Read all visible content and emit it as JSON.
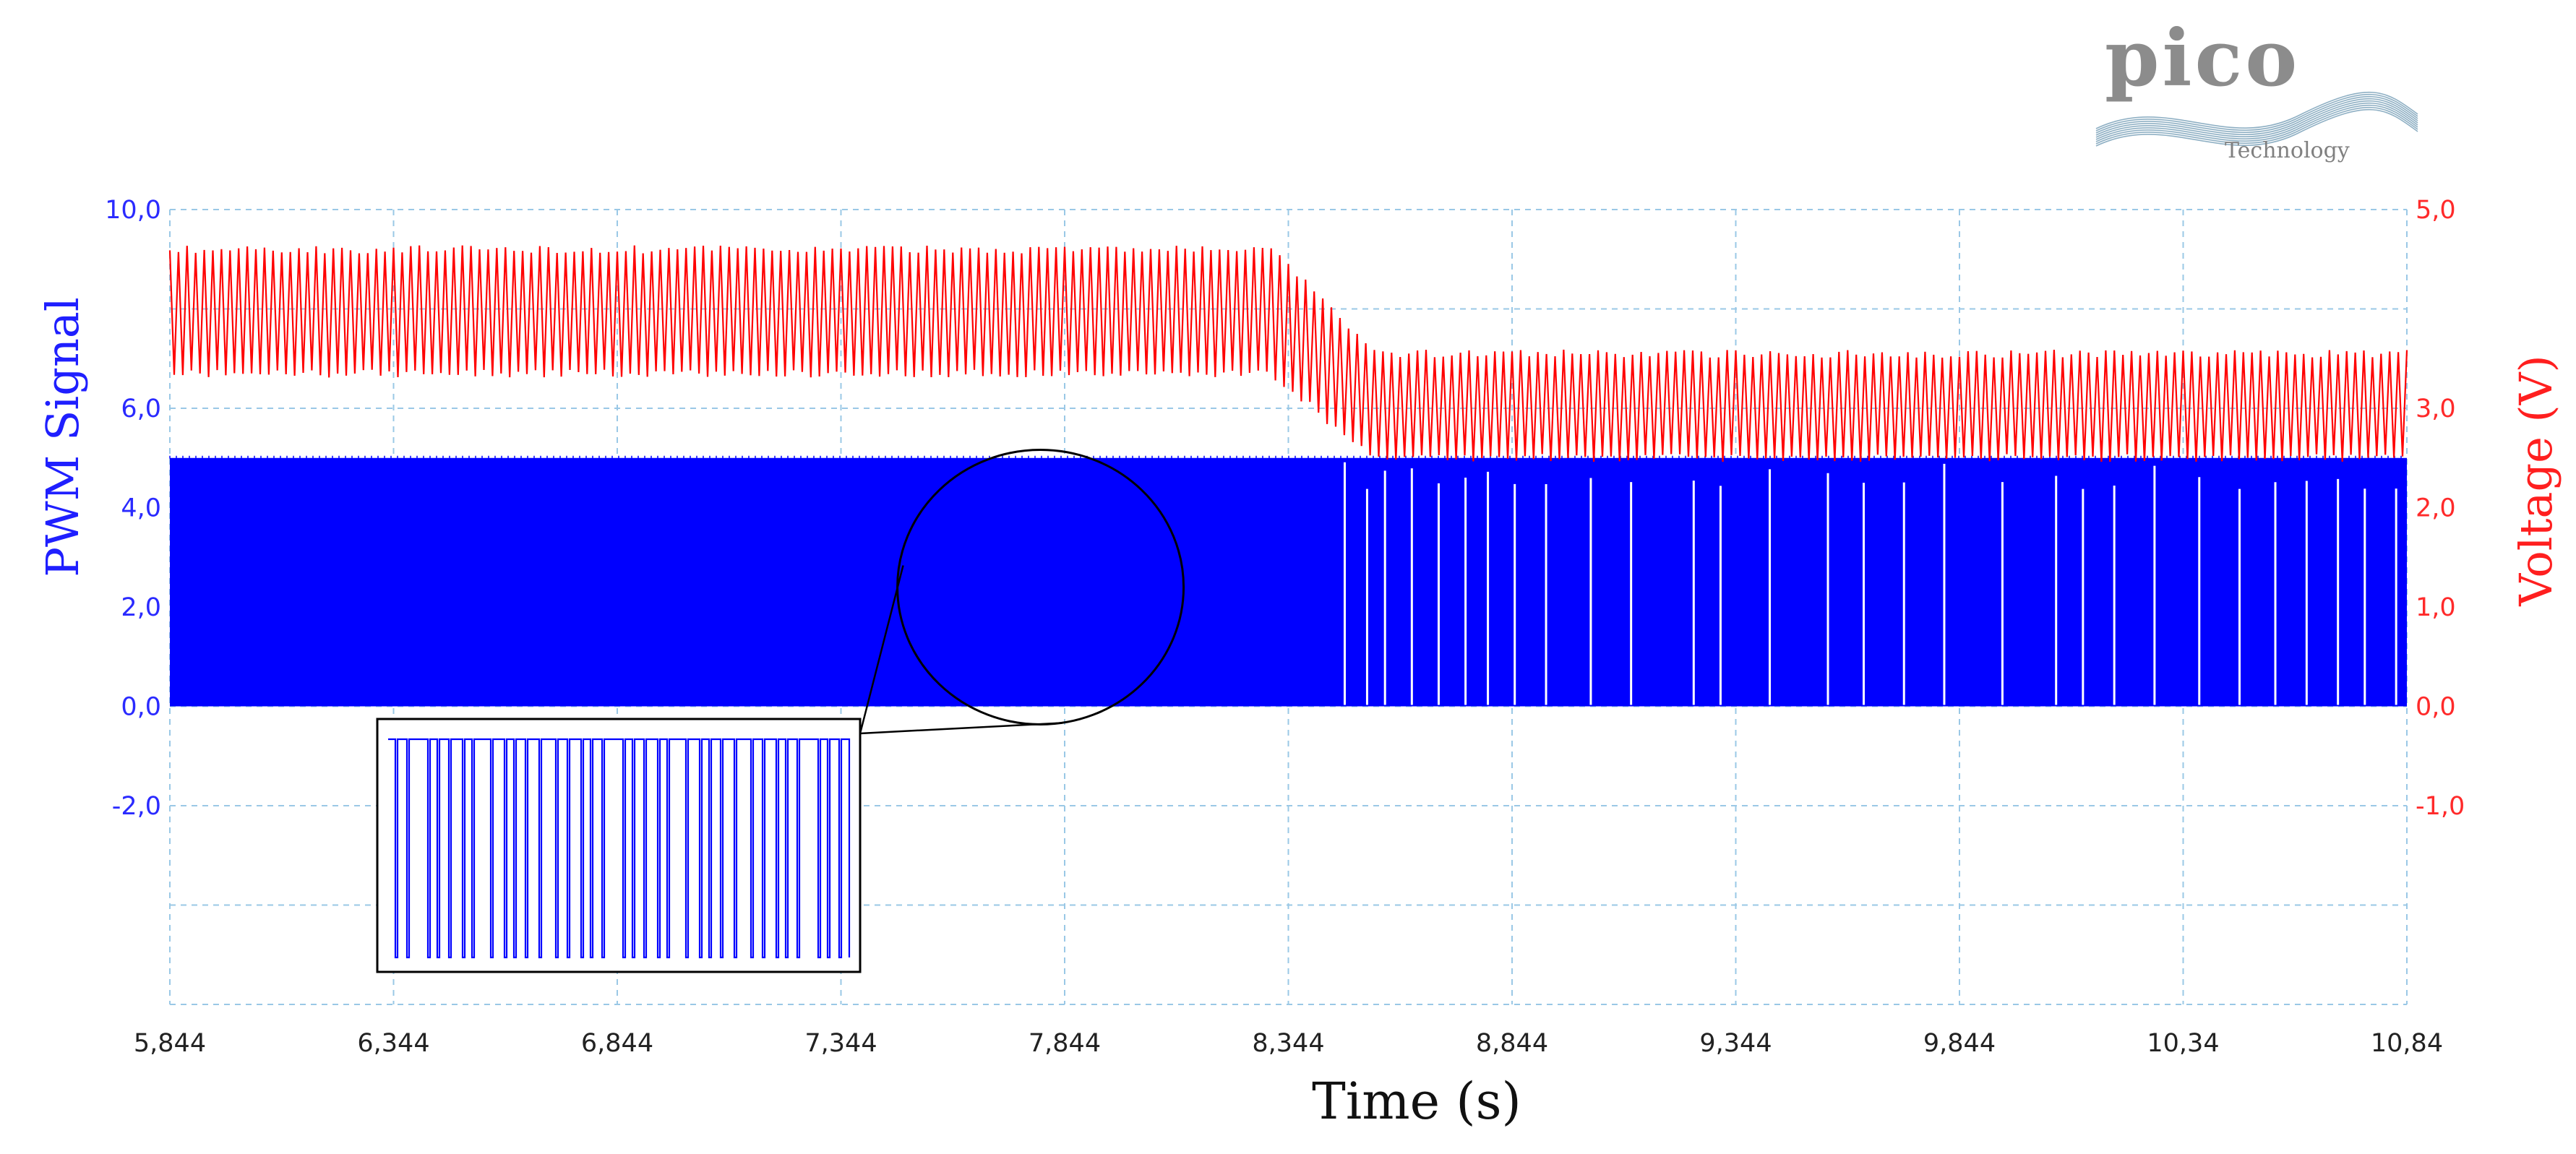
{
  "logo": {
    "name": "pico",
    "tagline": "Technology"
  },
  "chart_data": {
    "type": "line",
    "title": "",
    "xlabel": "Time (s)",
    "ylabel_left": "PWM Signal",
    "ylabel_right": "Voltage (V)",
    "xlim": [
      5.844,
      10.844
    ],
    "ylim_left": [
      -6,
      10
    ],
    "ylim_right": [
      -3,
      5
    ],
    "grid": true,
    "x_ticks": [
      5.844,
      6.344,
      6.844,
      7.344,
      7.844,
      8.344,
      8.844,
      9.344,
      9.844,
      10.344,
      10.844
    ],
    "x_tick_labels": [
      "5,844",
      "6,344",
      "6,844",
      "7,344",
      "7,844",
      "8,344",
      "8,844",
      "9,344",
      "9,844",
      "10,34",
      "10,84"
    ],
    "y_left_ticks": [
      10,
      6,
      4,
      2,
      0,
      -2
    ],
    "y_left_tick_labels": [
      "10,0",
      "6,0",
      "4,0",
      "2,0",
      "0,0",
      "-2,0"
    ],
    "y_right_ticks": [
      5,
      3,
      2,
      1,
      0,
      -1
    ],
    "y_right_tick_labels": [
      "5,0",
      "3,0",
      "2,0",
      "1,0",
      "0,0",
      "-1,0"
    ],
    "colors": {
      "pwm": "#0000ff",
      "voltage": "#ff0000",
      "grid": "#9ac8e6",
      "left_axis": "#2a2aff",
      "right_axis": "#ff2a2a"
    },
    "series": [
      {
        "axis": "left",
        "x": [
          5.844,
          8.354,
          8.354,
          10.844
        ],
        "upper": [
          5.0,
          5.0,
          5.0,
          5.0
        ],
        "lower": [
          0.0,
          0.0,
          0.0,
          0.0
        ],
        "gap_region_start": 8.47,
        "gap_times": [
          8.47,
          8.52,
          8.56,
          8.62,
          8.68,
          8.74,
          8.79,
          8.85,
          8.92,
          9.02,
          9.11,
          9.25,
          9.31,
          9.42,
          9.55,
          9.63,
          9.72,
          9.81,
          9.94,
          10.06,
          10.12,
          10.19,
          10.28,
          10.38,
          10.47,
          10.55,
          10.62,
          10.69,
          10.75,
          10.82
        ]
      },
      {
        "axis": "right",
        "x": [
          5.844,
          8.3,
          8.4,
          8.5,
          8.55,
          10.844
        ],
        "upper": [
          4.6,
          4.6,
          4.2,
          3.7,
          3.55,
          3.55
        ],
        "lower": [
          3.35,
          3.35,
          3.0,
          2.6,
          2.5,
          2.5
        ]
      }
    ],
    "inset": {
      "magnifier_center": [
        7.79,
        2.4
      ],
      "levels": [
        5.0,
        0.0
      ]
    }
  }
}
